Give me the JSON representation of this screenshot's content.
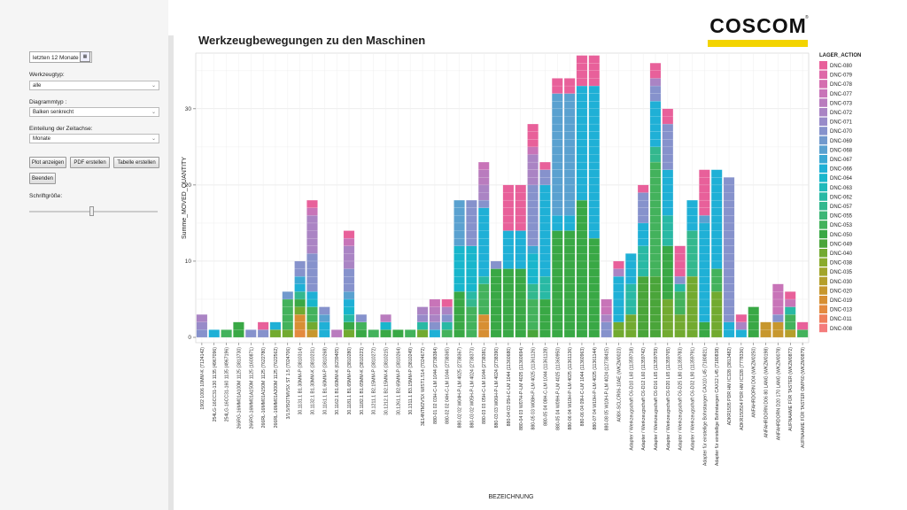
{
  "sidebar": {
    "period_value": "letzten 12 Monate",
    "calendar_icon": "calendar-icon",
    "tooltype_label": "Werkzeugtyp:",
    "tooltype_value": "alle",
    "diagramtype_label": "Diagrammtyp :",
    "diagramtype_value": "Balken senkrecht",
    "timeaxis_label": "Einteilung der Zeitachse:",
    "timeaxis_value": "Monate",
    "buttons": {
      "plot": "Plot anzeigen",
      "pdf": "PDF erstellen",
      "table": "Tabelle erstellen",
      "exit": "Beenden"
    },
    "fontsize_label": "Schriftgröße:",
    "fontsize_level": 0.48
  },
  "logo": {
    "text": "COSCOM",
    "reg": "®",
    "bar_color": "#f3d400"
  },
  "chart_data": {
    "type": "bar",
    "stacked": true,
    "title": "Werkzeugbewegungen zu den Maschinen",
    "xlabel": "BEZEICHNUNG",
    "ylabel": "Summe_MOVED_QUANTITY",
    "ylim": [
      0,
      38
    ],
    "yticks": [
      0,
      10,
      20,
      30
    ],
    "grid": true,
    "legend_title": "LAGER_ACTION",
    "legend_position": "right",
    "legend": [
      {
        "name": "DNC-080",
        "color": "#e8609a"
      },
      {
        "name": "DNC-079",
        "color": "#de68a8"
      },
      {
        "name": "DNC-078",
        "color": "#d56eb0"
      },
      {
        "name": "DNC-077",
        "color": "#c874b8"
      },
      {
        "name": "DNC-073",
        "color": "#b97cbe"
      },
      {
        "name": "DNC-072",
        "color": "#aa84c4"
      },
      {
        "name": "DNC-071",
        "color": "#988bc9"
      },
      {
        "name": "DNC-070",
        "color": "#8692cc"
      },
      {
        "name": "DNC-069",
        "color": "#7199cd"
      },
      {
        "name": "DNC-068",
        "color": "#5aa1d0"
      },
      {
        "name": "DNC-067",
        "color": "#3ba8d4"
      },
      {
        "name": "DNC-066",
        "color": "#1fb0d6"
      },
      {
        "name": "DNC-064",
        "color": "#18b6cc"
      },
      {
        "name": "DNC-063",
        "color": "#1fb9ba"
      },
      {
        "name": "DNC-062",
        "color": "#29b9a4"
      },
      {
        "name": "DNC-057",
        "color": "#33b88e"
      },
      {
        "name": "DNC-055",
        "color": "#3cb676"
      },
      {
        "name": "DNC-053",
        "color": "#43b25c"
      },
      {
        "name": "DNC-050",
        "color": "#39a845"
      },
      {
        "name": "DNC-049",
        "color": "#4aa53a"
      },
      {
        "name": "DNC-040",
        "color": "#72aa30"
      },
      {
        "name": "DNC-038",
        "color": "#8aab2c"
      },
      {
        "name": "DNC-035",
        "color": "#a2a52a"
      },
      {
        "name": "DNC-030",
        "color": "#b59f2b"
      },
      {
        "name": "DNC-020",
        "color": "#c7972e"
      },
      {
        "name": "DNC-019",
        "color": "#d78f33"
      },
      {
        "name": "DNC-013",
        "color": "#e48a3f"
      },
      {
        "name": "DNC-011",
        "color": "#ef7f5b"
      },
      {
        "name": "DNC-008",
        "color": "#f47c7c"
      }
    ],
    "categories": [
      "1902 1006 10MM-K (7124142)",
      "254LG-16CC31-130 1135 (4967096)",
      "254LG-16CC31-160 1135 (4967196)",
      "266RG-16MM01A100M 1125 (3813730)",
      "266RG-16MM01A150M 1125 (1600871)",
      "266RL-16MM01A150M 1125 (7622780)",
      "266RL-16MM01A200M 1125 (7622562)",
      "3/1.5/ISOTMVSX ST 1.5 (7024706)",
      "30.1131.1 B1.30MM-P (3810314)",
      "30.1132.1 B1.30MM-K (3810231)",
      "30.1161.1 B1.60MM-P (3810268)",
      "30.1162.1 B1.60MM-K (6239405)",
      "30.1181.1 B1.65MM-P (3810280)",
      "30.1182.1 B1.65MM-K (3810223)",
      "30.1211.1 B2.15MM-P (3810272)",
      "30.1212.1 B2.15MM-K (3810215)",
      "30.1261.1 B2.65MM-P (3810264)",
      "30.1311.1 B3.15MM-P (3810249)",
      "3E14NTM2VSX WIST1.514 (7024672)",
      "880-01 02 03H-C-LM 1044 (2738384)",
      "880-02 02 04H-C-LM 1044 (2738365)",
      "880-02 02 W04H-P-LM 4025 (2738367)",
      "880-03 02 W05H-P-LM 4024 (2738373)",
      "880-03 03 05H-C-LM 1044 (2738381)",
      "880-03 03 W06H-P-LM 4024 (2738390)",
      "880-04 03 05H-C-LM 1044 (11360680)",
      "880-04 03 W07H-P-LM 4025 (11360694)",
      "880-05 03 W08H-P-LM 4025 (11361126)",
      "880-05 04 08H-C-LM 1044 (11361128)",
      "880-05 04 W09H-P-LM 4025 (11360950)",
      "880-06 04 W10H-P-LM 4025 (11361136)",
      "880-06 04 09H-C-LM 1044 (11360963)",
      "880-07 04 W10H-P-LM 4025 (11361144)",
      "880-08 05 W10H-P-LM 4024 (12738415)",
      "A08X-SCLCR06-10AE (WKZM0023)",
      "Adapter / Werkzeugschaft C6-D10 L60 (11359718)",
      "Adapter / Werkzeugschaft C6-D12 L60 (11359742)",
      "Adapter / Werkzeugschaft C6-D16 L65 (11359759)",
      "Adapter / Werkzeugschaft C6-D20 L65 (11359765)",
      "Adapter / Werkzeugschaft C6-D25 L80 (11359783)",
      "Adapter / Werkzeugschaft C6-D32 L90 (11359791)",
      "Adapter für einstellige Bohrstangen CAX10 L45 (7180821)",
      "Adapter für einstellige Bohrstangen CAX12 L45 (7180838)",
      "ADKR1505 PDR HM IC328 (3813482)",
      "ADKR150504 PDR HM IC328 (7778336)",
      "ANFAHRDORN D04 (WKZM0250)",
      "ANFAHRDORN D06 80 LANG (WKZM0198)",
      "ANFAHRDORN D20 170 LANG (WKZM0078)",
      "AUFNAHME FÜR TASTER (WKZM0872)",
      "AUFNAHME FÜR TASTER OMP60 (WKZM0879)"
    ],
    "stacks": [
      [
        [
          "DNC-070",
          1
        ],
        [
          "DNC-071",
          1
        ],
        [
          "DNC-072",
          1
        ]
      ],
      [
        [
          "DNC-066",
          1
        ]
      ],
      [
        [
          "DNC-053",
          1
        ]
      ],
      [
        [
          "DNC-050",
          2
        ]
      ],
      [
        [
          "DNC-070",
          1
        ]
      ],
      [
        [
          "DNC-070",
          1
        ],
        [
          "DNC-080",
          1
        ]
      ],
      [
        [
          "DNC-040",
          1
        ],
        [
          "DNC-066",
          1
        ]
      ],
      [
        [
          "DNC-040",
          1
        ],
        [
          "DNC-053",
          4
        ],
        [
          "DNC-069",
          1
        ]
      ],
      [
        [
          "DNC-013",
          1
        ],
        [
          "DNC-019",
          2
        ],
        [
          "DNC-040",
          1
        ],
        [
          "DNC-050",
          1
        ],
        [
          "DNC-057",
          1
        ],
        [
          "DNC-066",
          1
        ],
        [
          "DNC-067",
          1
        ],
        [
          "DNC-070",
          2
        ]
      ],
      [
        [
          "DNC-020",
          1
        ],
        [
          "DNC-040",
          1
        ],
        [
          "DNC-053",
          2
        ],
        [
          "DNC-064",
          1
        ],
        [
          "DNC-066",
          1
        ],
        [
          "DNC-070",
          5
        ],
        [
          "DNC-072",
          5
        ],
        [
          "DNC-077",
          1
        ],
        [
          "DNC-080",
          1
        ]
      ],
      [
        [
          "DNC-066",
          2
        ],
        [
          "DNC-068",
          1
        ],
        [
          "DNC-070",
          1
        ]
      ],
      [
        [
          "DNC-073",
          1
        ]
      ],
      [
        [
          "DNC-040",
          1
        ],
        [
          "DNC-050",
          1
        ],
        [
          "DNC-062",
          1
        ],
        [
          "DNC-064",
          1
        ],
        [
          "DNC-066",
          1
        ],
        [
          "DNC-068",
          1
        ],
        [
          "DNC-070",
          3
        ],
        [
          "DNC-072",
          3
        ],
        [
          "DNC-077",
          1
        ],
        [
          "DNC-080",
          1
        ]
      ],
      [
        [
          "DNC-050",
          1
        ],
        [
          "DNC-053",
          1
        ],
        [
          "DNC-070",
          1
        ]
      ],
      [
        [
          "DNC-053",
          1
        ]
      ],
      [
        [
          "DNC-050",
          1
        ],
        [
          "DNC-064",
          1
        ],
        [
          "DNC-073",
          1
        ]
      ],
      [
        [
          "DNC-050",
          1
        ]
      ],
      [
        [
          "DNC-053",
          1
        ]
      ],
      [
        [
          "DNC-040",
          1
        ],
        [
          "DNC-062",
          1
        ],
        [
          "DNC-071",
          1
        ],
        [
          "DNC-072",
          1
        ]
      ],
      [
        [
          "DNC-066",
          1
        ],
        [
          "DNC-070",
          1
        ],
        [
          "DNC-072",
          1
        ],
        [
          "DNC-073",
          1
        ],
        [
          "DNC-077",
          1
        ]
      ],
      [
        [
          "DNC-053",
          1
        ],
        [
          "DNC-062",
          1
        ],
        [
          "DNC-070",
          1
        ],
        [
          "DNC-072",
          1
        ],
        [
          "DNC-080",
          1
        ]
      ],
      [
        [
          "DNC-050",
          6
        ],
        [
          "DNC-064",
          6
        ],
        [
          "DNC-068",
          6
        ]
      ],
      [
        [
          "DNC-053",
          4
        ],
        [
          "DNC-057",
          1
        ],
        [
          "DNC-062",
          1
        ],
        [
          "DNC-064",
          6
        ],
        [
          "DNC-070",
          6
        ]
      ],
      [
        [
          "DNC-019",
          3
        ],
        [
          "DNC-053",
          4
        ],
        [
          "DNC-062",
          1
        ],
        [
          "DNC-066",
          9
        ],
        [
          "DNC-070",
          1
        ],
        [
          "DNC-072",
          2
        ],
        [
          "DNC-073",
          2
        ],
        [
          "DNC-077",
          1
        ]
      ],
      [
        [
          "DNC-050",
          9
        ],
        [
          "DNC-070",
          1
        ]
      ],
      [
        [
          "DNC-050",
          9
        ],
        [
          "DNC-066",
          5
        ],
        [
          "DNC-080",
          6
        ]
      ],
      [
        [
          "DNC-050",
          9
        ],
        [
          "DNC-066",
          5
        ],
        [
          "DNC-080",
          6
        ]
      ],
      [
        [
          "DNC-049",
          1
        ],
        [
          "DNC-053",
          4
        ],
        [
          "DNC-057",
          2
        ],
        [
          "DNC-064",
          4
        ],
        [
          "DNC-067",
          1
        ],
        [
          "DNC-070",
          8
        ],
        [
          "DNC-072",
          4
        ],
        [
          "DNC-077",
          1
        ],
        [
          "DNC-080",
          3
        ]
      ],
      [
        [
          "DNC-050",
          5
        ],
        [
          "DNC-062",
          3
        ],
        [
          "DNC-066",
          12
        ],
        [
          "DNC-070",
          2
        ],
        [
          "DNC-080",
          1
        ]
      ],
      [
        [
          "DNC-050",
          14
        ],
        [
          "DNC-066",
          2
        ],
        [
          "DNC-068",
          16
        ],
        [
          "DNC-080",
          2
        ]
      ],
      [
        [
          "DNC-050",
          14
        ],
        [
          "DNC-066",
          2
        ],
        [
          "DNC-068",
          16
        ],
        [
          "DNC-080",
          2
        ]
      ],
      [
        [
          "DNC-050",
          18
        ],
        [
          "DNC-066",
          15
        ],
        [
          "DNC-080",
          4
        ]
      ],
      [
        [
          "DNC-050",
          13
        ],
        [
          "DNC-066",
          20
        ],
        [
          "DNC-080",
          4
        ]
      ],
      [
        [
          "DNC-070",
          2
        ],
        [
          "DNC-072",
          1
        ],
        [
          "DNC-077",
          2
        ]
      ],
      [
        [
          "DNC-040",
          2
        ],
        [
          "DNC-066",
          6
        ],
        [
          "DNC-072",
          1
        ],
        [
          "DNC-080",
          1
        ]
      ],
      [
        [
          "DNC-040",
          3
        ],
        [
          "DNC-062",
          4
        ],
        [
          "DNC-066",
          4
        ]
      ],
      [
        [
          "DNC-049",
          8
        ],
        [
          "DNC-062",
          4
        ],
        [
          "DNC-066",
          3
        ],
        [
          "DNC-070",
          4
        ],
        [
          "DNC-080",
          1
        ]
      ],
      [
        [
          "DNC-049",
          8
        ],
        [
          "DNC-053",
          15
        ],
        [
          "DNC-057",
          2
        ],
        [
          "DNC-066",
          6
        ],
        [
          "DNC-070",
          2
        ],
        [
          "DNC-072",
          1
        ],
        [
          "DNC-080",
          2
        ]
      ],
      [
        [
          "DNC-040",
          5
        ],
        [
          "DNC-050",
          7
        ],
        [
          "DNC-062",
          4
        ],
        [
          "DNC-066",
          6
        ],
        [
          "DNC-070",
          6
        ],
        [
          "DNC-080",
          2
        ]
      ],
      [
        [
          "DNC-040",
          3
        ],
        [
          "DNC-053",
          3
        ],
        [
          "DNC-062",
          1
        ],
        [
          "DNC-070",
          1
        ],
        [
          "DNC-080",
          4
        ]
      ],
      [
        [
          "DNC-040",
          8
        ],
        [
          "DNC-057",
          6
        ],
        [
          "DNC-066",
          4
        ]
      ],
      [
        [
          "DNC-050",
          2
        ],
        [
          "DNC-066",
          13
        ],
        [
          "DNC-068",
          1
        ],
        [
          "DNC-080",
          6
        ]
      ],
      [
        [
          "DNC-040",
          6
        ],
        [
          "DNC-053",
          3
        ],
        [
          "DNC-066",
          13
        ]
      ],
      [
        [
          "DNC-066",
          2
        ],
        [
          "DNC-070",
          19
        ]
      ],
      [
        [
          "DNC-066",
          1
        ],
        [
          "DNC-072",
          1
        ],
        [
          "DNC-080",
          1
        ]
      ],
      [
        [
          "DNC-050",
          4
        ]
      ],
      [
        [
          "DNC-020",
          2
        ]
      ],
      [
        [
          "DNC-020",
          2
        ],
        [
          "DNC-070",
          1
        ],
        [
          "DNC-077",
          4
        ]
      ],
      [
        [
          "DNC-030",
          1
        ],
        [
          "DNC-053",
          2
        ],
        [
          "DNC-062",
          1
        ],
        [
          "DNC-077",
          1
        ],
        [
          "DNC-080",
          1
        ]
      ],
      [
        [
          "DNC-053",
          1
        ],
        [
          "DNC-080",
          1
        ]
      ]
    ]
  }
}
